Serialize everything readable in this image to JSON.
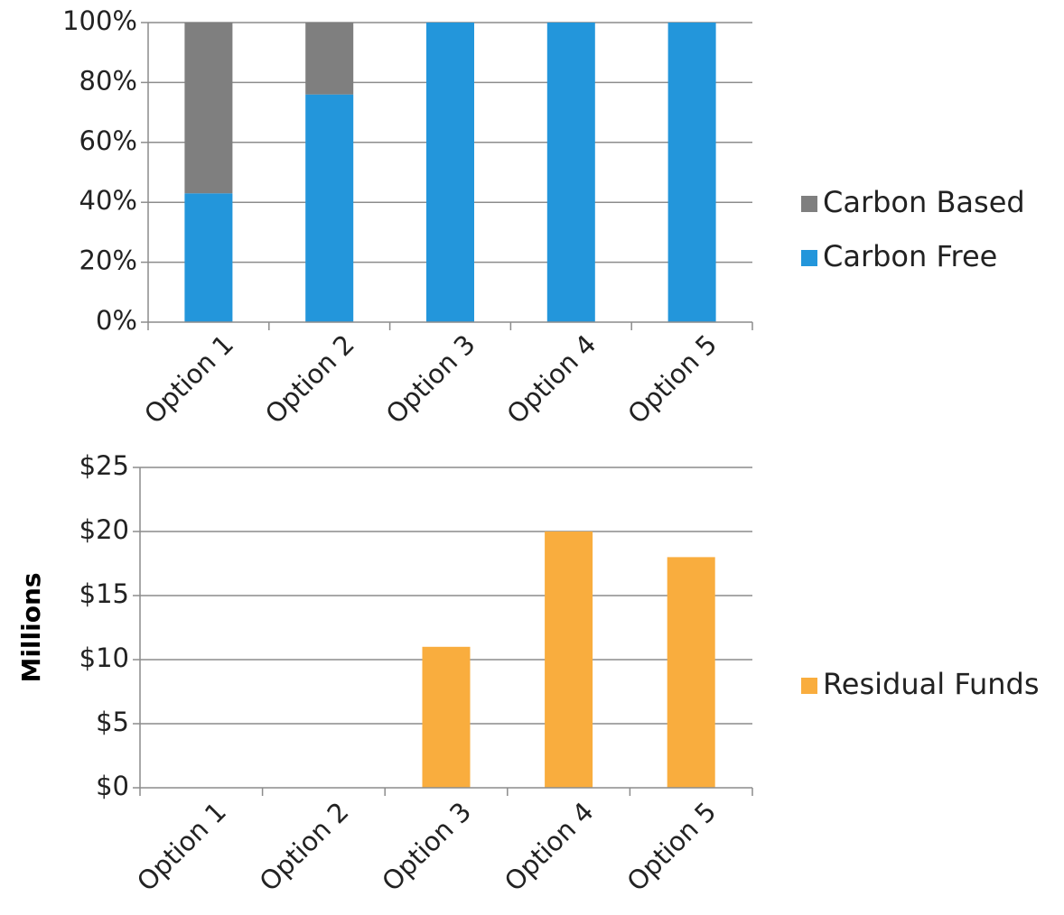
{
  "charts": [
    {
      "chart_data": {
        "type": "bar",
        "stacked": true,
        "categories": [
          "Option 1",
          "Option 2",
          "Option 3",
          "Option 4",
          "Option 5"
        ],
        "series": [
          {
            "name": "Carbon Free",
            "values": [
              43,
              76,
              100,
              100,
              100
            ],
            "color": "#2396db"
          },
          {
            "name": "Carbon Based",
            "values": [
              57,
              24,
              0,
              0,
              0
            ],
            "color": "#7f7f7f"
          }
        ],
        "legend_order": [
          "Carbon Based",
          "Carbon Free"
        ],
        "ylim": [
          0,
          100
        ],
        "yticks": [
          0,
          20,
          40,
          60,
          80,
          100
        ],
        "ytick_labels": [
          "0%",
          "20%",
          "40%",
          "60%",
          "80%",
          "100%"
        ],
        "ylabel": "",
        "grid": true,
        "legend_position": "right"
      }
    },
    {
      "chart_data": {
        "type": "bar",
        "categories": [
          "Option 1",
          "Option 2",
          "Option 3",
          "Option 4",
          "Option 5"
        ],
        "series": [
          {
            "name": "Residual Funds",
            "values": [
              0,
              0,
              11,
              20,
              18
            ],
            "color": "#f9ad3e"
          }
        ],
        "legend_order": [
          "Residual Funds"
        ],
        "ylim": [
          0,
          25
        ],
        "yticks": [
          0,
          5,
          10,
          15,
          20,
          25
        ],
        "ytick_labels": [
          "$0",
          "$5",
          "$10",
          "$15",
          "$20",
          "$25"
        ],
        "ylabel": "Millions",
        "grid": true,
        "legend_position": "right"
      }
    }
  ]
}
